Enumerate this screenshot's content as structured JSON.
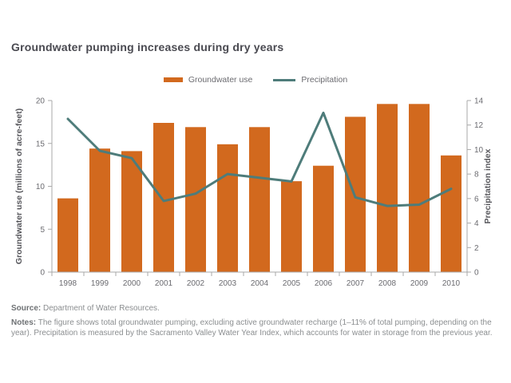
{
  "page": {
    "title": "Groundwater pumping increases during dry years",
    "source_label": "Source:",
    "source_text": "Department of Water Resources.",
    "notes_label": "Notes:",
    "notes_text": "The figure shows total groundwater pumping, excluding active groundwater recharge (1–11% of total pumping, depending on the year). Precipitation is measured by the Sacramento Valley Water Year Index, which accounts for water in storage from the previous year."
  },
  "colors": {
    "bar": "#D2691E",
    "line": "#4E7C7A",
    "axis": "#A8A8A8",
    "tick_text": "#6B6B70",
    "title_text": "#4A4A51",
    "notes_text": "#8B8E90"
  },
  "legend": [
    {
      "label": "Groundwater use",
      "color": "#D2691E",
      "swatch": "bar"
    },
    {
      "label": "Precipitation",
      "color": "#4E7C7A",
      "swatch": "line"
    }
  ],
  "chart_data": {
    "type": "bar",
    "title": "Groundwater pumping increases during dry years",
    "categories": [
      "1998",
      "1999",
      "2000",
      "2001",
      "2002",
      "2003",
      "2004",
      "2005",
      "2006",
      "2007",
      "2008",
      "2009",
      "2010"
    ],
    "series": [
      {
        "name": "Groundwater use",
        "type": "bar",
        "axis": "left",
        "values": [
          8.6,
          14.4,
          14.1,
          17.4,
          16.9,
          14.9,
          16.9,
          10.6,
          12.4,
          18.1,
          19.6,
          19.6,
          13.6
        ]
      },
      {
        "name": "Precipitation",
        "type": "line",
        "axis": "right",
        "values": [
          12.5,
          9.9,
          9.3,
          5.8,
          6.4,
          8.0,
          7.7,
          7.4,
          13.0,
          6.1,
          5.4,
          5.5,
          6.8
        ]
      }
    ],
    "left_axis": {
      "label": "Groundwater use (millions of acre-feet)",
      "range": [
        0,
        20
      ],
      "ticks": [
        0,
        5,
        10,
        15,
        20
      ]
    },
    "right_axis": {
      "label": "Precipitation index",
      "range": [
        0,
        14
      ],
      "ticks": [
        0,
        2,
        4,
        6,
        8,
        10,
        12,
        14
      ]
    },
    "grid": false,
    "legend_position": "top"
  }
}
